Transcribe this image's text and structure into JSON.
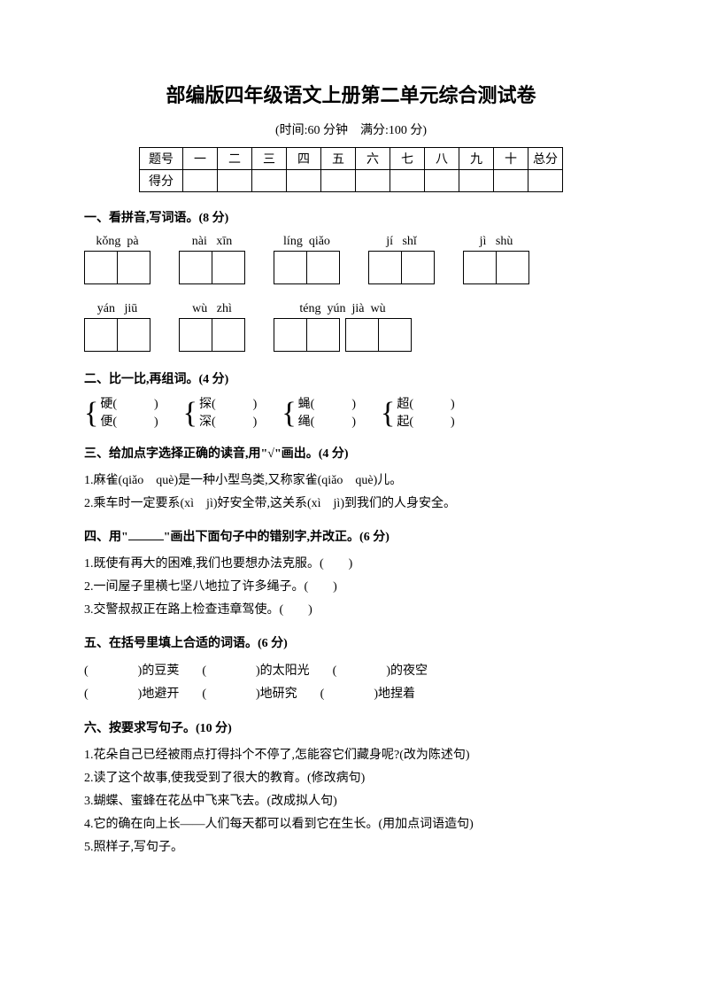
{
  "title": "部编版四年级语文上册第二单元综合测试卷",
  "subtitle": "(时间:60 分钟　满分:100 分)",
  "score_table": {
    "row1": [
      "题号",
      "一",
      "二",
      "三",
      "四",
      "五",
      "六",
      "七",
      "八",
      "九",
      "十",
      "总分"
    ],
    "row2_head": "得分"
  },
  "s1": {
    "heading": "一、看拼音,写词语。(8 分)",
    "row1": [
      {
        "py": "kǒng  pà"
      },
      {
        "py": "nài   xīn"
      },
      {
        "py": "líng  qiǎo"
      },
      {
        "py": "jí   shǐ"
      },
      {
        "py": "jì   shù"
      }
    ],
    "row2": [
      {
        "py": "yán   jiū"
      },
      {
        "py": "wù   zhì"
      },
      {
        "py": "téng  yún  jià  wù",
        "boxes": 4
      }
    ]
  },
  "s2": {
    "heading": "二、比一比,再组词。(4 分)",
    "groups": [
      {
        "a": "硬(",
        "ae": ")",
        "b": "便(",
        "be": ")"
      },
      {
        "a": "探(",
        "ae": ")",
        "b": "深(",
        "be": ")"
      },
      {
        "a": "蝇(",
        "ae": ")",
        "b": "绳(",
        "be": ")"
      },
      {
        "a": "超(",
        "ae": ")",
        "b": "起(",
        "be": ")"
      }
    ]
  },
  "s3": {
    "heading": "三、给加点字选择正确的读音,用\"√\"画出。(4 分)",
    "l1": "1.麻雀(qiǎo　què)是一种小型鸟类,又称家雀(qiǎo　què)儿。",
    "l2": "2.乘车时一定要系(xì　jì)好安全带,这关系(xì　jì)到我们的人身安全。"
  },
  "s4": {
    "heading_pre": "四、用\"",
    "heading_post": "\"画出下面句子中的错别字,并改正。(6 分)",
    "l1": "1.既使有再大的困难,我们也要想办法克服。(　　)",
    "l2": "2.一间屋子里横七坚八地拉了许多绳子。(　　)",
    "l3": "3.交警叔叔正在路上检查违章驾使。(　　)"
  },
  "s5": {
    "heading": "五、在括号里填上合适的词语。(6 分)",
    "row1": [
      "(　　　　)的豆荚",
      "(　　　　)的太阳光",
      "(　　　　)的夜空"
    ],
    "row2": [
      "(　　　　)地避开",
      "(　　　　)地研究",
      "(　　　　)地捏着"
    ]
  },
  "s6": {
    "heading": "六、按要求写句子。(10 分)",
    "l1": "1.花朵自己已经被雨点打得抖个不停了,怎能容它们藏身呢?(改为陈述句)",
    "l2": "2.读了这个故事,使我受到了很大的教育。(修改病句)",
    "l3": "3.蝴蝶、蜜蜂在花丛中飞来飞去。(改成拟人句)",
    "l4": "4.它的确在向上长——人们每天都可以看到它在生长。(用加点词语造句)",
    "l5": "5.照样子,写句子。"
  }
}
